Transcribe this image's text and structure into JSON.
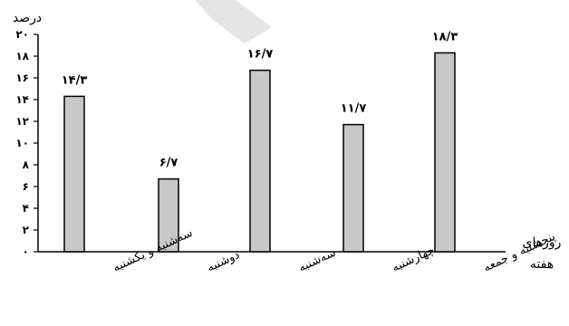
{
  "chart_data": {
    "type": "bar",
    "title": "",
    "ylabel": "درصد",
    "xlabel_lines": [
      "روزهای",
      "هفته"
    ],
    "categories": [
      "سه‌شنبه و یکشنبه",
      "دوشنبه",
      "سه‌شنبه",
      "چهارشنبه",
      "پنجشنبه و جمعه"
    ],
    "values": [
      14.3,
      6.7,
      16.7,
      11.7,
      18.3
    ],
    "value_labels": [
      "۱۴/۳",
      "۶/۷",
      "۱۶/۷",
      "۱۱/۷",
      "۱۸/۳"
    ],
    "ylim": [
      0,
      20
    ],
    "yticks": [
      0,
      2,
      4,
      6,
      8,
      10,
      12,
      14,
      16,
      18,
      20
    ],
    "ytick_labels": [
      "۰",
      "۲",
      "۴",
      "۶",
      "۸",
      "۱۰",
      "۱۲",
      "۱۴",
      "۱۶",
      "۱۸",
      "۲۰"
    ],
    "grid": false,
    "legend": "none",
    "bar_fill": "#c8c8c8",
    "bar_stroke": "#000000"
  }
}
